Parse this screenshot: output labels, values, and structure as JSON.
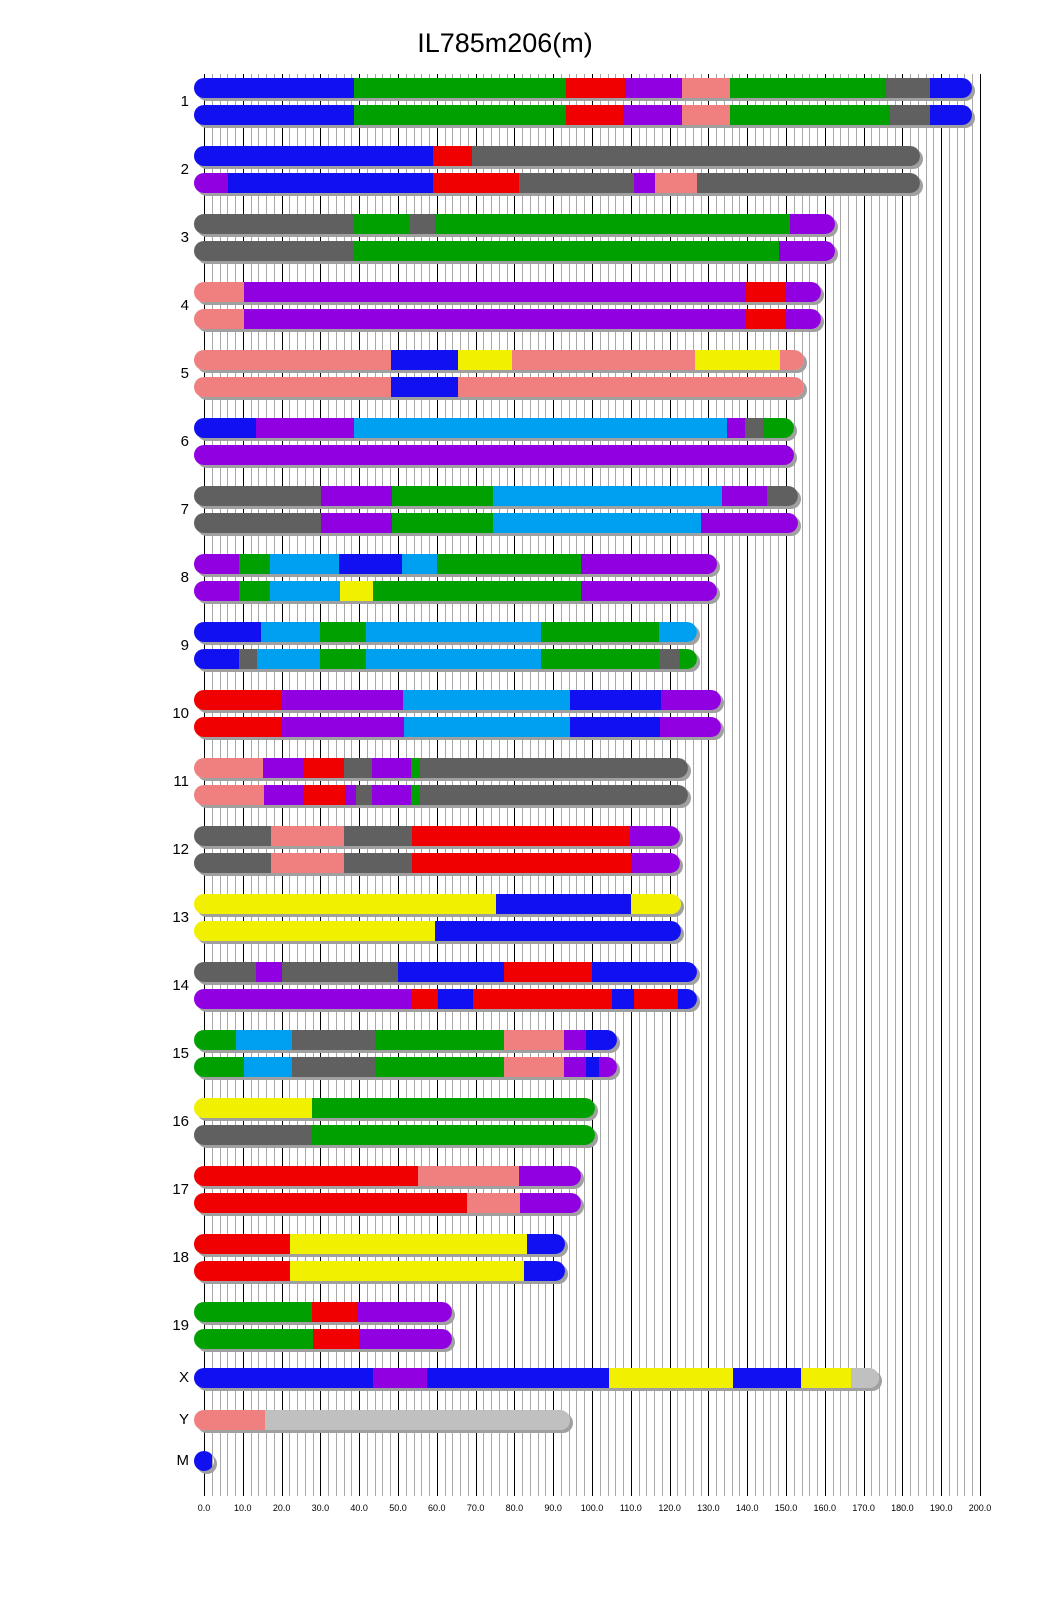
{
  "chart_data": {
    "type": "chromosome-painting",
    "title": "IL785m206(m)",
    "xlim": [
      0,
      200
    ],
    "x_ticks": [
      "0.0",
      "10.0",
      "20.0",
      "30.0",
      "40.0",
      "50.0",
      "60.0",
      "70.0",
      "80.0",
      "90.0",
      "100.0",
      "110.0",
      "120.0",
      "130.0",
      "140.0",
      "150.0",
      "160.0",
      "170.0",
      "180.0",
      "190.0",
      "200.0"
    ],
    "colors": {
      "B": "#1010f0",
      "G": "#00a000",
      "R": "#f00000",
      "P": "#9000e0",
      "K": "#f08080",
      "D": "#606060",
      "L": "#00a0f0",
      "Y": "#f0f000",
      "S": "#c0c0c0"
    },
    "chromosomes": [
      {
        "name": "1",
        "haplotypes": [
          [
            [
              38.7,
              "B"
            ],
            [
              93.3,
              "G"
            ],
            [
              108.5,
              "R"
            ],
            [
              123.2,
              "P"
            ],
            [
              135.6,
              "K"
            ],
            [
              175.8,
              "G"
            ],
            [
              187.1,
              "D"
            ],
            [
              197.9,
              "B"
            ]
          ],
          [
            [
              38.7,
              "B"
            ],
            [
              93.3,
              "G"
            ],
            [
              108,
              "R"
            ],
            [
              123.2,
              "P"
            ],
            [
              135.6,
              "K"
            ],
            [
              176.8,
              "G"
            ],
            [
              187.1,
              "D"
            ],
            [
              197.9,
              "B"
            ]
          ]
        ]
      },
      {
        "name": "2",
        "haplotypes": [
          [
            [
              59,
              "B"
            ],
            [
              69,
              "R"
            ],
            [
              184.5,
              "D"
            ]
          ],
          [
            [
              6.2,
              "P"
            ],
            [
              59,
              "B"
            ],
            [
              81.2,
              "R"
            ],
            [
              110.8,
              "D"
            ],
            [
              116.2,
              "P"
            ],
            [
              127,
              "K"
            ],
            [
              184.5,
              "D"
            ]
          ]
        ]
      },
      {
        "name": "3",
        "haplotypes": [
          [
            [
              38.7,
              "D"
            ],
            [
              52.8,
              "G"
            ],
            [
              59.5,
              "D"
            ],
            [
              151,
              "G"
            ],
            [
              162.6,
              "P"
            ]
          ],
          [
            [
              38.7,
              "D"
            ],
            [
              148.2,
              "G"
            ],
            [
              162.6,
              "P"
            ]
          ]
        ]
      },
      {
        "name": "4",
        "haplotypes": [
          [
            [
              10.3,
              "K"
            ],
            [
              139.7,
              "P"
            ],
            [
              150,
              "R"
            ],
            [
              159,
              "P"
            ]
          ],
          [
            [
              10.3,
              "K"
            ],
            [
              139.7,
              "P"
            ],
            [
              150,
              "R"
            ],
            [
              159,
              "P"
            ]
          ]
        ]
      },
      {
        "name": "5",
        "haplotypes": [
          [
            [
              48.2,
              "K"
            ],
            [
              65.5,
              "B"
            ],
            [
              79.4,
              "Y"
            ],
            [
              126.5,
              "K"
            ],
            [
              148.5,
              "Y"
            ],
            [
              154.6,
              "K"
            ]
          ],
          [
            [
              48.2,
              "K"
            ],
            [
              65.5,
              "B"
            ],
            [
              154.6,
              "K"
            ]
          ]
        ]
      },
      {
        "name": "6",
        "haplotypes": [
          [
            [
              13.4,
              "B"
            ],
            [
              38.7,
              "P"
            ],
            [
              134.8,
              "L"
            ],
            [
              139.4,
              "P"
            ],
            [
              144,
              "D"
            ],
            [
              152.1,
              "G"
            ]
          ],
          [
            [
              152.1,
              "P"
            ]
          ]
        ]
      },
      {
        "name": "7",
        "haplotypes": [
          [
            [
              30.2,
              "D"
            ],
            [
              48.5,
              "P"
            ],
            [
              74.5,
              "G"
            ],
            [
              133.5,
              "L"
            ],
            [
              145.1,
              "P"
            ],
            [
              153,
              "D"
            ]
          ],
          [
            [
              30.2,
              "D"
            ],
            [
              48.5,
              "P"
            ],
            [
              74.5,
              "G"
            ],
            [
              128.1,
              "L"
            ],
            [
              153,
              "P"
            ]
          ]
        ]
      },
      {
        "name": "8",
        "haplotypes": [
          [
            [
              9,
              "P"
            ],
            [
              17,
              "G"
            ],
            [
              34.8,
              "L"
            ],
            [
              51,
              "B"
            ],
            [
              60,
              "L"
            ],
            [
              97.2,
              "G"
            ],
            [
              132.2,
              "P"
            ]
          ],
          [
            [
              9,
              "P"
            ],
            [
              17,
              "G"
            ],
            [
              35,
              "L"
            ],
            [
              43.6,
              "Y"
            ],
            [
              97.2,
              "G"
            ],
            [
              132.2,
              "P"
            ]
          ]
        ]
      },
      {
        "name": "9",
        "haplotypes": [
          [
            [
              14.7,
              "B"
            ],
            [
              29.9,
              "L"
            ],
            [
              41.8,
              "G"
            ],
            [
              86.9,
              "L"
            ],
            [
              117.3,
              "G"
            ],
            [
              127.1,
              "L"
            ]
          ],
          [
            [
              9,
              "B"
            ],
            [
              13.7,
              "D"
            ],
            [
              29.9,
              "L"
            ],
            [
              41.8,
              "G"
            ],
            [
              86.9,
              "L"
            ],
            [
              117.3,
              "G"
            ],
            [
              122.4,
              "D"
            ],
            [
              127.1,
              "G"
            ]
          ]
        ]
      },
      {
        "name": "10",
        "haplotypes": [
          [
            [
              20.1,
              "R"
            ],
            [
              51.3,
              "P"
            ],
            [
              94.3,
              "L"
            ],
            [
              117.8,
              "B"
            ],
            [
              133.2,
              "P"
            ]
          ],
          [
            [
              20.1,
              "R"
            ],
            [
              51.5,
              "P"
            ],
            [
              94.3,
              "L"
            ],
            [
              117.5,
              "B"
            ],
            [
              133.2,
              "P"
            ]
          ]
        ]
      },
      {
        "name": "11",
        "haplotypes": [
          [
            [
              15.2,
              "K"
            ],
            [
              25.8,
              "P"
            ],
            [
              36.1,
              "R"
            ],
            [
              43.3,
              "D"
            ],
            [
              53.4,
              "P"
            ],
            [
              55.7,
              "G"
            ],
            [
              124.7,
              "D"
            ]
          ],
          [
            [
              15.5,
              "K"
            ],
            [
              25.8,
              "P"
            ],
            [
              36.3,
              "R"
            ],
            [
              39.2,
              "P"
            ],
            [
              43.3,
              "D"
            ],
            [
              53.4,
              "P"
            ],
            [
              55.7,
              "G"
            ],
            [
              124.7,
              "D"
            ]
          ]
        ]
      },
      {
        "name": "12",
        "haplotypes": [
          [
            [
              17.3,
              "D"
            ],
            [
              36.1,
              "K"
            ],
            [
              53.6,
              "D"
            ],
            [
              109.8,
              "R"
            ],
            [
              122.7,
              "P"
            ]
          ],
          [
            [
              17.3,
              "D"
            ],
            [
              36.1,
              "K"
            ],
            [
              53.6,
              "D"
            ],
            [
              110,
              "R"
            ],
            [
              122.7,
              "P"
            ]
          ]
        ]
      },
      {
        "name": "13",
        "haplotypes": [
          [
            [
              75.3,
              "Y"
            ],
            [
              110,
              "B"
            ],
            [
              123,
              "Y"
            ]
          ],
          [
            [
              59.5,
              "Y"
            ],
            [
              123,
              "B"
            ]
          ]
        ]
      },
      {
        "name": "14",
        "haplotypes": [
          [
            [
              13.4,
              "D"
            ],
            [
              20.1,
              "P"
            ],
            [
              50,
              "D"
            ],
            [
              77.3,
              "B"
            ],
            [
              100,
              "R"
            ],
            [
              127.1,
              "B"
            ]
          ],
          [
            [
              53.6,
              "P"
            ],
            [
              60.3,
              "R"
            ],
            [
              69.3,
              "B"
            ],
            [
              105.2,
              "R"
            ],
            [
              110.8,
              "B"
            ],
            [
              122.2,
              "R"
            ],
            [
              127.1,
              "B"
            ]
          ]
        ]
      },
      {
        "name": "15",
        "haplotypes": [
          [
            [
              8.2,
              "G"
            ],
            [
              22.7,
              "L"
            ],
            [
              44.1,
              "D"
            ],
            [
              77.3,
              "G"
            ],
            [
              92.8,
              "K"
            ],
            [
              98.5,
              "P"
            ],
            [
              106.4,
              "B"
            ]
          ],
          [
            [
              10.3,
              "G"
            ],
            [
              22.7,
              "L"
            ],
            [
              44.1,
              "D"
            ],
            [
              77.3,
              "G"
            ],
            [
              92.8,
              "K"
            ],
            [
              98.5,
              "P"
            ],
            [
              101.8,
              "B"
            ],
            [
              106.4,
              "P"
            ]
          ]
        ]
      },
      {
        "name": "16",
        "haplotypes": [
          [
            [
              27.8,
              "Y"
            ],
            [
              100.8,
              "G"
            ]
          ],
          [
            [
              27.8,
              "D"
            ],
            [
              100.8,
              "G"
            ]
          ]
        ]
      },
      {
        "name": "17",
        "haplotypes": [
          [
            [
              55.2,
              "R"
            ],
            [
              81.2,
              "K"
            ],
            [
              97.2,
              "P"
            ]
          ],
          [
            [
              67.8,
              "R"
            ],
            [
              81.4,
              "K"
            ],
            [
              97.2,
              "P"
            ]
          ]
        ]
      },
      {
        "name": "18",
        "haplotypes": [
          [
            [
              22.2,
              "R"
            ],
            [
              83.2,
              "Y"
            ],
            [
              93,
              "B"
            ]
          ],
          [
            [
              22.2,
              "R"
            ],
            [
              82.5,
              "Y"
            ],
            [
              93,
              "B"
            ]
          ]
        ]
      },
      {
        "name": "19",
        "haplotypes": [
          [
            [
              27.8,
              "G"
            ],
            [
              39.7,
              "R"
            ],
            [
              63.9,
              "P"
            ]
          ],
          [
            [
              28.1,
              "G"
            ],
            [
              40,
              "R"
            ],
            [
              63.9,
              "P"
            ]
          ]
        ]
      },
      {
        "name": "X",
        "haplotypes": [
          [
            [
              43.6,
              "B"
            ],
            [
              57.5,
              "P"
            ],
            [
              104.4,
              "B"
            ],
            [
              136.3,
              "Y"
            ],
            [
              153.9,
              "B"
            ],
            [
              166.8,
              "Y"
            ],
            [
              174,
              "S"
            ]
          ]
        ]
      },
      {
        "name": "Y",
        "haplotypes": [
          [
            [
              15.7,
              "K"
            ],
            [
              94.3,
              "S"
            ]
          ]
        ]
      },
      {
        "name": "M",
        "haplotypes": [
          [
            [
              2,
              "B"
            ]
          ]
        ]
      }
    ]
  }
}
